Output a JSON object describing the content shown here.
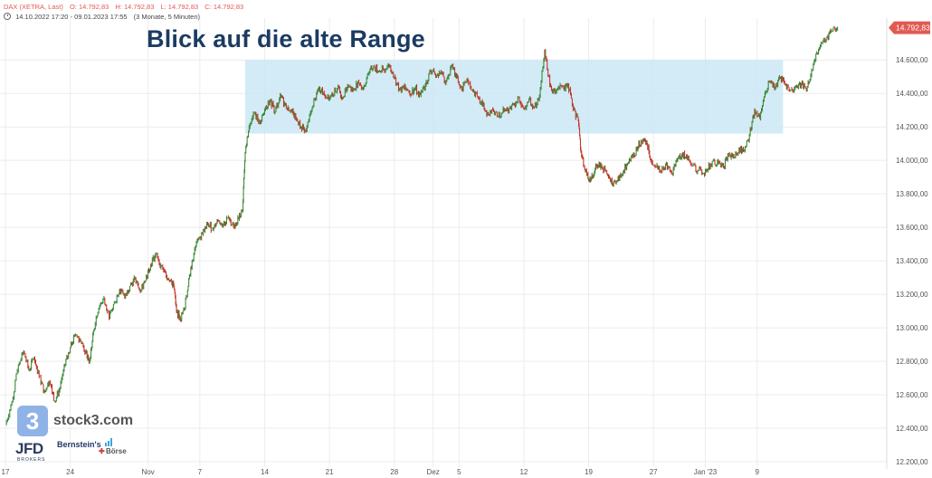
{
  "header": {
    "symbol_label": "DAX (XETRA, Last)",
    "open": "O: 14.792,83",
    "high": "H: 14.792,83",
    "low": "L: 14.792,83",
    "close": "C: 14.792,83",
    "date_range": "14.10.2022 17:20 - 09.01.2023 17:55",
    "interval": "(3 Monate, 5 Minuten)"
  },
  "headline": "Blick auf die alte Range",
  "branding": {
    "stock3_icon": "3",
    "stock3": "stock3.com",
    "jfd": "JFD",
    "jfd_sub": "BROKERS",
    "bernstein": "Bernstein's",
    "boerse": "Börse"
  },
  "colors": {
    "up": "#3a8a3a",
    "down": "#c0392b",
    "range_box": "#cbe7f4",
    "price_badge": "#e05a52",
    "headline": "#1c3b63"
  },
  "chart_data": {
    "type": "line",
    "title": "Blick auf die alte Range",
    "instrument": "DAX (XETRA, Last)",
    "last_price_label": "14.792,83",
    "ylim": [
      12200,
      14850
    ],
    "y_ticks": [
      12200,
      12400,
      12600,
      12800,
      13000,
      13200,
      13400,
      13600,
      13800,
      14000,
      14200,
      14400,
      14600
    ],
    "y_tick_labels": [
      "12.200,00",
      "12.400,00",
      "12.600,00",
      "12.800,00",
      "13.000,00",
      "13.200,00",
      "13.400,00",
      "13.600,00",
      "13.800,00",
      "14.000,00",
      "14.200,00",
      "14.400,00",
      "14.600,00"
    ],
    "x_ticks": [
      {
        "label": "17",
        "pos": 0
      },
      {
        "label": "24",
        "pos": 5
      },
      {
        "label": "Nov",
        "pos": 11
      },
      {
        "label": "7",
        "pos": 15
      },
      {
        "label": "14",
        "pos": 20
      },
      {
        "label": "21",
        "pos": 25
      },
      {
        "label": "28",
        "pos": 30
      },
      {
        "label": "Dez",
        "pos": 33
      },
      {
        "label": "5",
        "pos": 35
      },
      {
        "label": "12",
        "pos": 40
      },
      {
        "label": "19",
        "pos": 45
      },
      {
        "label": "27",
        "pos": 50
      },
      {
        "label": "Jan '23",
        "pos": 54
      },
      {
        "label": "9",
        "pos": 58
      }
    ],
    "x_range": [
      0,
      68
    ],
    "range_box": {
      "pos_start": 18.5,
      "pos_end": 60,
      "low": 14160,
      "high": 14600
    },
    "series": [
      {
        "points": [
          [
            0,
            12420
          ],
          [
            0.5,
            12560
          ],
          [
            1,
            12780
          ],
          [
            1.4,
            12860
          ],
          [
            1.8,
            12750
          ],
          [
            2.2,
            12820
          ],
          [
            2.6,
            12710
          ],
          [
            3,
            12620
          ],
          [
            3.4,
            12680
          ],
          [
            3.8,
            12560
          ],
          [
            4.2,
            12640
          ],
          [
            4.6,
            12780
          ],
          [
            5,
            12880
          ],
          [
            5.4,
            12960
          ],
          [
            5.8,
            12920
          ],
          [
            6.2,
            12850
          ],
          [
            6.5,
            12800
          ],
          [
            6.8,
            12980
          ],
          [
            7.2,
            13120
          ],
          [
            7.6,
            13180
          ],
          [
            8,
            13060
          ],
          [
            8.4,
            13150
          ],
          [
            8.8,
            13230
          ],
          [
            9.2,
            13180
          ],
          [
            9.6,
            13250
          ],
          [
            10,
            13290
          ],
          [
            10.4,
            13210
          ],
          [
            10.8,
            13280
          ],
          [
            11.2,
            13380
          ],
          [
            11.6,
            13440
          ],
          [
            12,
            13370
          ],
          [
            12.4,
            13310
          ],
          [
            12.8,
            13280
          ],
          [
            13,
            13250
          ],
          [
            13.2,
            13100
          ],
          [
            13.5,
            13050
          ],
          [
            13.8,
            13110
          ],
          [
            14.1,
            13250
          ],
          [
            14.4,
            13400
          ],
          [
            14.8,
            13520
          ],
          [
            15.2,
            13560
          ],
          [
            15.6,
            13620
          ],
          [
            16,
            13590
          ],
          [
            16.4,
            13640
          ],
          [
            16.8,
            13620
          ],
          [
            17.2,
            13660
          ],
          [
            17.6,
            13610
          ],
          [
            18,
            13650
          ],
          [
            18.3,
            13700
          ],
          [
            18.5,
            14050
          ],
          [
            18.8,
            14200
          ],
          [
            19.2,
            14280
          ],
          [
            19.6,
            14230
          ],
          [
            20,
            14300
          ],
          [
            20.4,
            14360
          ],
          [
            20.8,
            14290
          ],
          [
            21.2,
            14390
          ],
          [
            21.6,
            14330
          ],
          [
            22,
            14300
          ],
          [
            22.4,
            14250
          ],
          [
            22.8,
            14200
          ],
          [
            23.2,
            14180
          ],
          [
            23.6,
            14300
          ],
          [
            24,
            14400
          ],
          [
            24.4,
            14430
          ],
          [
            24.8,
            14370
          ],
          [
            25.2,
            14400
          ],
          [
            25.6,
            14430
          ],
          [
            26,
            14380
          ],
          [
            26.4,
            14450
          ],
          [
            26.8,
            14420
          ],
          [
            27.2,
            14470
          ],
          [
            27.6,
            14430
          ],
          [
            28,
            14520
          ],
          [
            28.4,
            14560
          ],
          [
            28.8,
            14530
          ],
          [
            29.2,
            14540
          ],
          [
            29.6,
            14560
          ],
          [
            30,
            14500
          ],
          [
            30.4,
            14420
          ],
          [
            30.8,
            14450
          ],
          [
            31.2,
            14400
          ],
          [
            31.6,
            14430
          ],
          [
            32,
            14390
          ],
          [
            32.4,
            14450
          ],
          [
            32.8,
            14540
          ],
          [
            33.2,
            14500
          ],
          [
            33.6,
            14530
          ],
          [
            34,
            14470
          ],
          [
            34.4,
            14560
          ],
          [
            34.8,
            14500
          ],
          [
            35.2,
            14430
          ],
          [
            35.6,
            14480
          ],
          [
            36,
            14420
          ],
          [
            36.4,
            14380
          ],
          [
            36.8,
            14330
          ],
          [
            37.2,
            14280
          ],
          [
            37.6,
            14300
          ],
          [
            38,
            14260
          ],
          [
            38.4,
            14310
          ],
          [
            38.8,
            14290
          ],
          [
            39.2,
            14330
          ],
          [
            39.6,
            14380
          ],
          [
            40,
            14310
          ],
          [
            40.4,
            14360
          ],
          [
            40.8,
            14320
          ],
          [
            41.2,
            14380
          ],
          [
            41.6,
            14660
          ],
          [
            42,
            14450
          ],
          [
            42.4,
            14400
          ],
          [
            42.8,
            14450
          ],
          [
            43.2,
            14420
          ],
          [
            43.4,
            14460
          ],
          [
            43.8,
            14300
          ],
          [
            44.2,
            14240
          ],
          [
            44.4,
            14050
          ],
          [
            44.7,
            13950
          ],
          [
            45,
            13880
          ],
          [
            45.3,
            13900
          ],
          [
            45.6,
            13970
          ],
          [
            46,
            13960
          ],
          [
            46.4,
            13920
          ],
          [
            46.8,
            13860
          ],
          [
            47.2,
            13880
          ],
          [
            47.6,
            13920
          ],
          [
            48,
            13980
          ],
          [
            48.4,
            14020
          ],
          [
            48.8,
            14080
          ],
          [
            49.2,
            14130
          ],
          [
            49.5,
            14100
          ],
          [
            49.8,
            14000
          ],
          [
            50.2,
            13960
          ],
          [
            50.6,
            13930
          ],
          [
            51,
            13980
          ],
          [
            51.4,
            13920
          ],
          [
            51.8,
            14000
          ],
          [
            52.2,
            14040
          ],
          [
            52.6,
            14010
          ],
          [
            53,
            13970
          ],
          [
            53.4,
            13940
          ],
          [
            53.8,
            13920
          ],
          [
            54.2,
            13950
          ],
          [
            54.6,
            14000
          ],
          [
            55,
            13980
          ],
          [
            55.4,
            13960
          ],
          [
            55.8,
            14040
          ],
          [
            56.2,
            14020
          ],
          [
            56.6,
            14070
          ],
          [
            57,
            14060
          ],
          [
            57.4,
            14150
          ],
          [
            57.8,
            14300
          ],
          [
            58.2,
            14250
          ],
          [
            58.6,
            14400
          ],
          [
            59,
            14470
          ],
          [
            59.4,
            14440
          ],
          [
            59.8,
            14490
          ],
          [
            60.2,
            14450
          ],
          [
            60.6,
            14420
          ],
          [
            61,
            14440
          ],
          [
            61.4,
            14460
          ],
          [
            61.8,
            14420
          ],
          [
            62.2,
            14540
          ],
          [
            62.6,
            14640
          ],
          [
            63,
            14700
          ],
          [
            63.4,
            14740
          ],
          [
            63.8,
            14770
          ],
          [
            64.2,
            14792.83
          ]
        ]
      }
    ]
  }
}
